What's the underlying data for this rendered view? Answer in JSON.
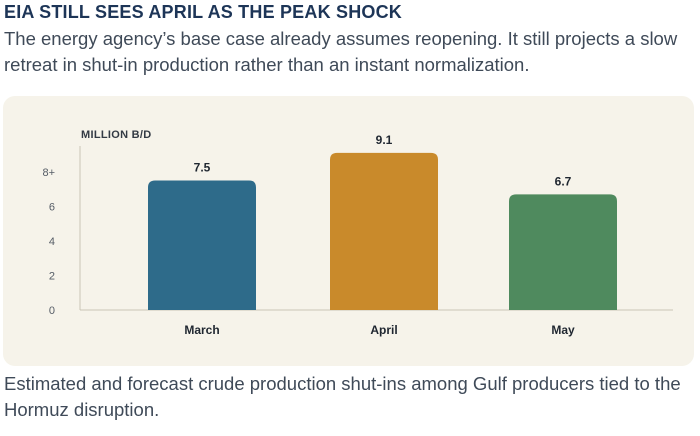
{
  "header": {
    "title": "EIA STILL SEES APRIL AS THE PEAK SHOCK",
    "dek": "The energy agency’s base case already assumes reopening. It still projects a slow retreat in shut-in production rather than an instant normalization."
  },
  "caption": "Estimated and forecast crude production shut-ins among Gulf producers tied to the Hormuz disruption.",
  "chart_data": {
    "type": "bar",
    "title": "",
    "ylabel": "MILLION B/D",
    "xlabel": "",
    "categories": [
      "March",
      "April",
      "May"
    ],
    "values": [
      7.5,
      9.1,
      6.7
    ],
    "data_labels": [
      "7.5",
      "9.1",
      "6.7"
    ],
    "colors": [
      "#2e6b8a",
      "#c98a2b",
      "#4f8a5e"
    ],
    "ylim": [
      0,
      9.5
    ],
    "yticks": [
      0,
      2,
      4,
      6,
      8
    ],
    "ytick_labels": [
      "0",
      "2",
      "4",
      "6",
      "8+"
    ],
    "grid": false,
    "legend": "none"
  }
}
